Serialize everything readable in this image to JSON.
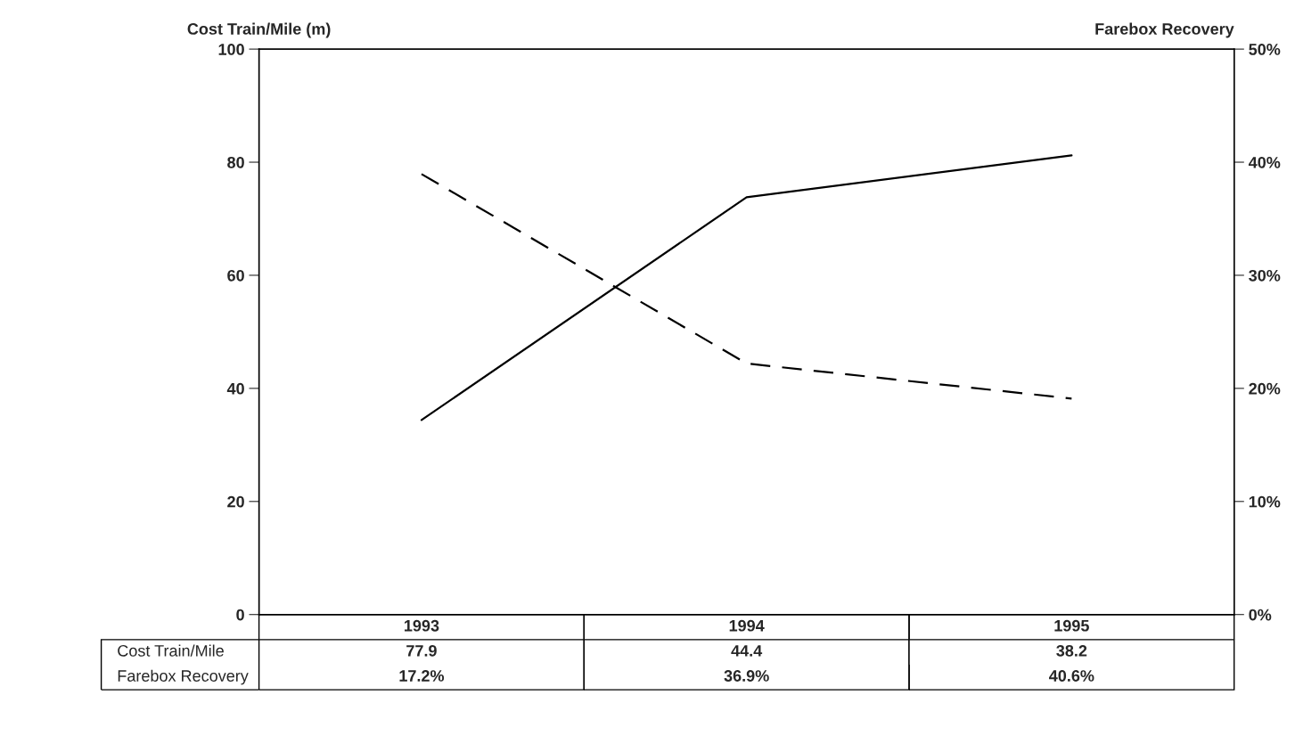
{
  "chart_data": {
    "type": "line",
    "categories": [
      "1993",
      "1994",
      "1995"
    ],
    "series": [
      {
        "name": "Cost Train/Mile",
        "color": "#000000",
        "values": [
          77.9,
          44.4,
          38.2
        ],
        "line_style": "dashed",
        "value_labels": [
          "77.9",
          "44.4",
          "38.2"
        ]
      },
      {
        "name": "Farebox Recovery",
        "color": "#000000",
        "values": [
          17.2,
          36.9,
          40.6
        ],
        "line_style": "solid",
        "axis": "y2",
        "value_labels": [
          "17.2%",
          "36.9%",
          "40.6%"
        ]
      }
    ],
    "ylabel": "Cost Train/Mile (m)",
    "y2label": "Farebox Recovery",
    "ylim": [
      0,
      100
    ],
    "yticks": [
      0,
      20,
      40,
      60,
      80,
      100
    ],
    "y2lim": [
      0,
      50
    ],
    "y2ticks": [
      {
        "value": 0,
        "label": "0%"
      },
      {
        "value": 10,
        "label": "10%"
      },
      {
        "value": 20,
        "label": "20%"
      },
      {
        "value": 30,
        "label": "30%"
      },
      {
        "value": 40,
        "label": "40%"
      },
      {
        "value": 50,
        "label": "50%"
      }
    ],
    "grid": false,
    "legend": "bottom left"
  }
}
